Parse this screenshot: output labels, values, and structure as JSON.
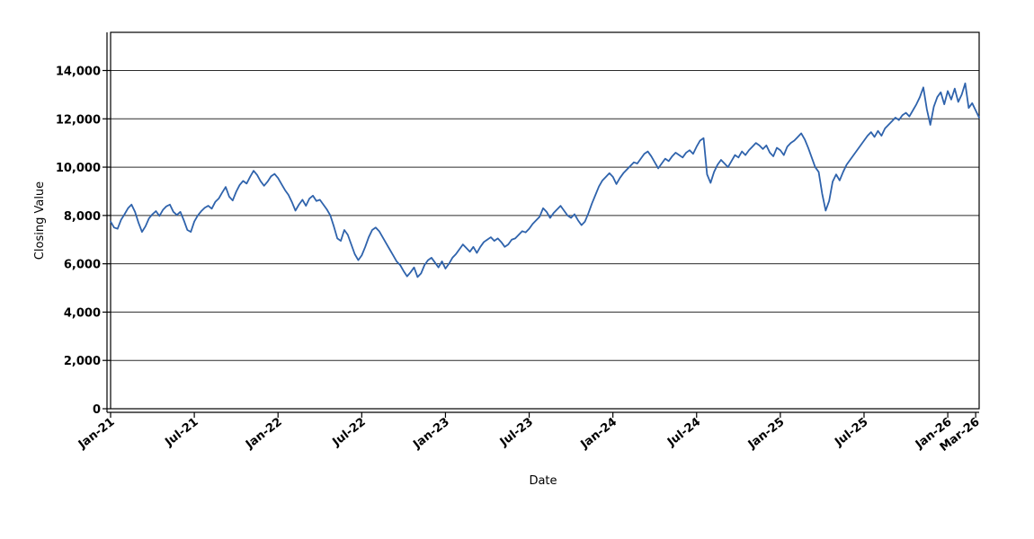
{
  "chart": {
    "title": "",
    "y_axis_title": "Closing Value",
    "x_axis_title": "Date"
  },
  "chart_data": {
    "type": "line",
    "title": "",
    "xlabel": "Date",
    "ylabel": "Closing Value",
    "legend": "none",
    "grid": "horizontal",
    "background_color": "#ffffff",
    "line_color": "#2f63ac",
    "axis_color": "#000000",
    "gridline_color": "#2b2b2b",
    "ylim": [
      0,
      15580
    ],
    "x_domain_months": [
      0,
      62.25
    ],
    "y_tick_values": [
      0,
      2000,
      4000,
      6000,
      8000,
      10000,
      12000,
      14000
    ],
    "y_tick_labels": [
      "0",
      "2,000",
      "4,000",
      "6,000",
      "8,000",
      "10,000",
      "12,000",
      "14,000"
    ],
    "x_tick_months": [
      0,
      6,
      12,
      18,
      24,
      30,
      36,
      42,
      48,
      54,
      60,
      62
    ],
    "x_tick_labels": [
      "Jan-21",
      "Jul-21",
      "Jan-22",
      "Jul-22",
      "Jan-23",
      "Jul-23",
      "Jan-24",
      "Jul-24",
      "Jan-25",
      "Jul-25",
      "Jan-26",
      "Mar-26"
    ],
    "series": [
      {
        "name": "Closing Value",
        "values": [
          7750,
          7500,
          7450,
          7820,
          8050,
          8300,
          8450,
          8150,
          7700,
          7320,
          7550,
          7880,
          8050,
          8180,
          7980,
          8230,
          8380,
          8450,
          8150,
          8020,
          8150,
          7800,
          7400,
          7320,
          7750,
          8000,
          8180,
          8320,
          8400,
          8280,
          8560,
          8700,
          8950,
          9180,
          8780,
          8620,
          8980,
          9260,
          9430,
          9320,
          9600,
          9850,
          9680,
          9420,
          9230,
          9400,
          9620,
          9720,
          9550,
          9300,
          9050,
          8850,
          8550,
          8200,
          8450,
          8650,
          8400,
          8700,
          8820,
          8600,
          8650,
          8450,
          8250,
          8000,
          7550,
          7050,
          6950,
          7400,
          7200,
          6800,
          6400,
          6150,
          6350,
          6700,
          7100,
          7400,
          7500,
          7350,
          7100,
          6850,
          6600,
          6350,
          6100,
          5950,
          5700,
          5480,
          5650,
          5850,
          5450,
          5600,
          5950,
          6150,
          6250,
          6050,
          5850,
          6100,
          5800,
          6000,
          6250,
          6400,
          6600,
          6800,
          6650,
          6500,
          6700,
          6450,
          6700,
          6900,
          7000,
          7100,
          6950,
          7050,
          6900,
          6700,
          6800,
          7000,
          7050,
          7200,
          7350,
          7300,
          7450,
          7650,
          7800,
          7950,
          8300,
          8150,
          7900,
          8100,
          8250,
          8400,
          8200,
          8000,
          7900,
          8050,
          7800,
          7600,
          7750,
          8100,
          8500,
          8850,
          9200,
          9450,
          9600,
          9750,
          9600,
          9300,
          9550,
          9750,
          9900,
          10050,
          10200,
          10150,
          10350,
          10550,
          10650,
          10450,
          10200,
          9950,
          10150,
          10350,
          10250,
          10450,
          10600,
          10500,
          10400,
          10600,
          10700,
          10550,
          10850,
          11100,
          11200,
          9700,
          9350,
          9800,
          10100,
          10300,
          10150,
          10000,
          10250,
          10500,
          10400,
          10650,
          10500,
          10700,
          10850,
          11000,
          10900,
          10750,
          10900,
          10600,
          10450,
          10800,
          10700,
          10500,
          10850,
          11000,
          11100,
          11250,
          11400,
          11150,
          10800,
          10400,
          10000,
          9800,
          8900,
          8200,
          8600,
          9400,
          9700,
          9450,
          9800,
          10100,
          10300,
          10500,
          10700,
          10900,
          11100,
          11300,
          11450,
          11250,
          11500,
          11300,
          11600,
          11750,
          11900,
          12050,
          11950,
          12150,
          12250,
          12100,
          12350,
          12600,
          12900,
          13300,
          12400,
          11750,
          12500,
          12900,
          13100,
          12600,
          13150,
          12800,
          13250,
          12700,
          13000,
          13470,
          12450,
          12650,
          12350,
          12050
        ]
      }
    ]
  }
}
